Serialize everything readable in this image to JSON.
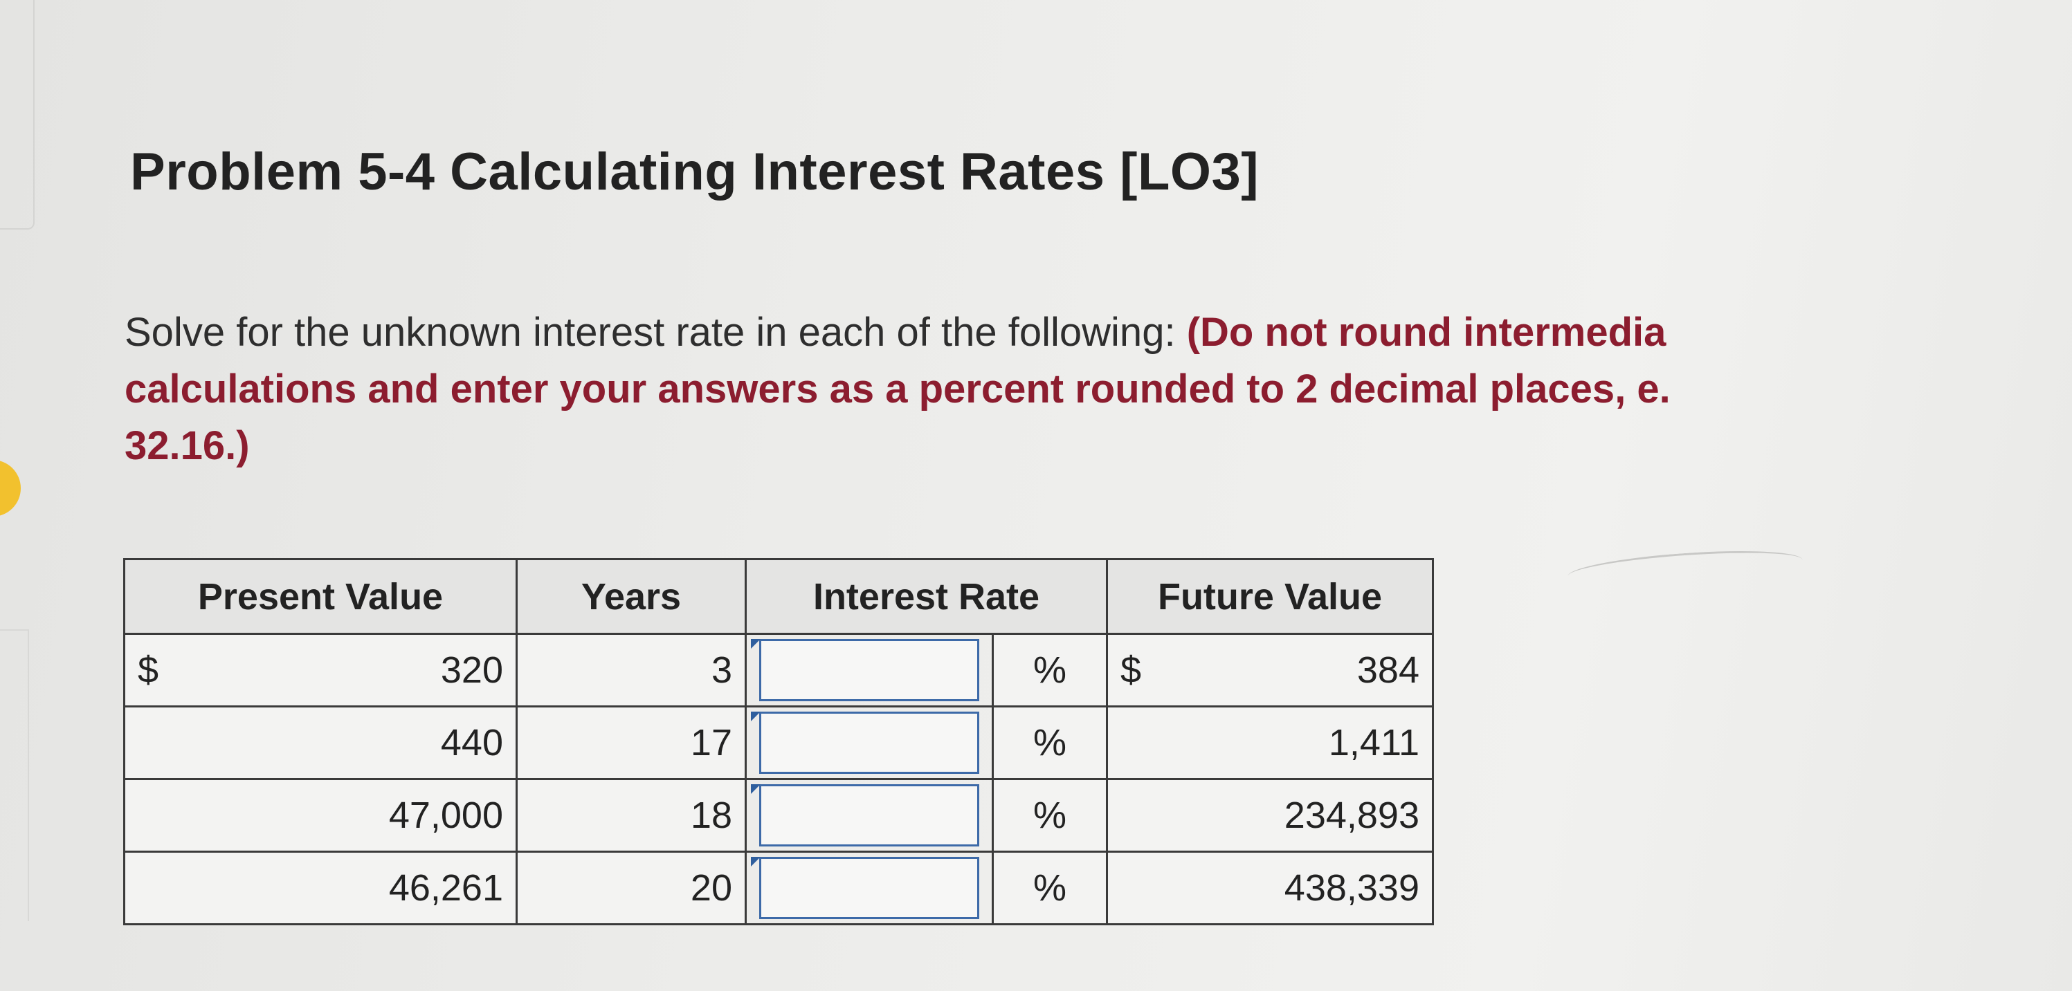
{
  "title": "Problem 5-4 Calculating Interest Rates [LO3]",
  "instructions": {
    "normal": "Solve for the unknown interest rate in each of the following: ",
    "bold_line1": "(Do not round intermedia",
    "bold_line2": "calculations and enter your answers as a percent rounded to 2 decimal places, e.",
    "bold_line3": "32.16.)"
  },
  "table": {
    "headers": [
      "Present Value",
      "Years",
      "Interest Rate",
      "Future Value"
    ],
    "currency_symbol": "$",
    "percent_symbol": "%",
    "rows": [
      {
        "present_value": "320",
        "years": "3",
        "interest_rate": "",
        "future_value": "384",
        "show_currency": true
      },
      {
        "present_value": "440",
        "years": "17",
        "interest_rate": "",
        "future_value": "1,411",
        "show_currency": false
      },
      {
        "present_value": "47,000",
        "years": "18",
        "interest_rate": "",
        "future_value": "234,893",
        "show_currency": false
      },
      {
        "present_value": "46,261",
        "years": "20",
        "interest_rate": "",
        "future_value": "438,339",
        "show_currency": false
      }
    ]
  },
  "colors": {
    "title": "#222222",
    "emphasis": "#8c1d2f",
    "input_border": "#3d6aa8",
    "highlight_dot": "#f2c12e"
  }
}
